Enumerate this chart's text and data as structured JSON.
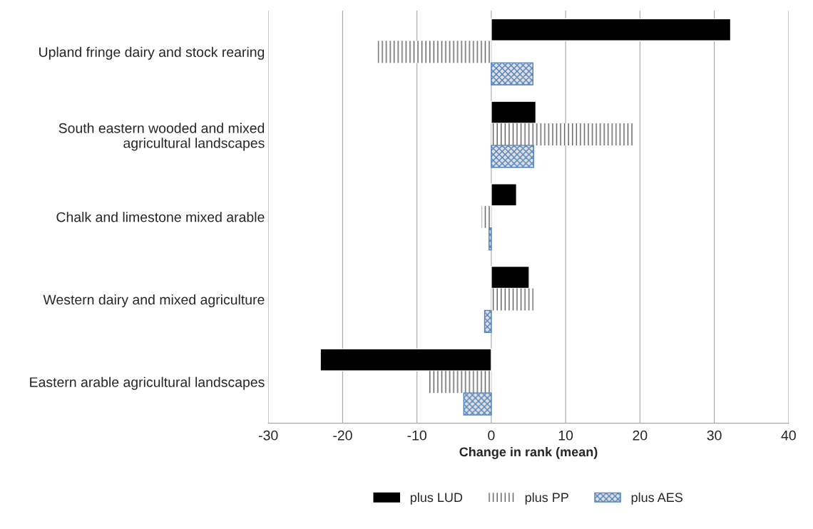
{
  "chart_data": {
    "type": "bar",
    "orientation": "horizontal",
    "xlabel": "Change in rank (mean)",
    "categories": [
      "Upland fringe dairy and stock rearing",
      "South eastern wooded and mixed\nagricultural landscapes",
      "Chalk and limestone mixed arable",
      "Western dairy and mixed agriculture",
      "Eastern arable agricultural landscapes"
    ],
    "series": [
      {
        "name": "plus LUD",
        "color": "#000000",
        "values": [
          32.2,
          6.0,
          3.4,
          5.1,
          -23.0
        ]
      },
      {
        "name": "plus PP",
        "color": "#595959",
        "values": [
          -15.3,
          19.3,
          -1.3,
          5.7,
          -8.7
        ]
      },
      {
        "name": "plus AES",
        "color": "#4f81bd",
        "values": [
          5.6,
          5.7,
          -0.3,
          -0.9,
          -3.7
        ]
      }
    ],
    "xlim": [
      -30,
      40
    ],
    "xticks": [
      -30,
      -20,
      -10,
      0,
      10,
      20,
      30,
      40
    ],
    "grid": "x",
    "legend": "bottom"
  }
}
